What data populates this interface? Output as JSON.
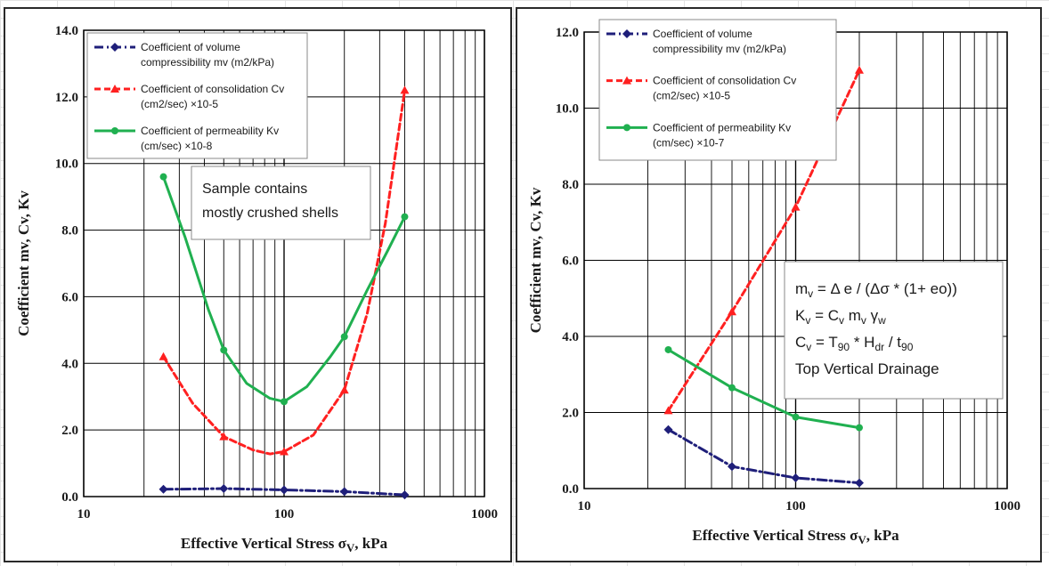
{
  "chart_data": [
    {
      "type": "line",
      "xscale": "log",
      "xlim": [
        10,
        1000
      ],
      "ylim": [
        0,
        14
      ],
      "y_ticks": [
        "0.0",
        "2.0",
        "4.0",
        "6.0",
        "8.0",
        "10.0",
        "12.0",
        "14.0"
      ],
      "x_ticks": [
        "10",
        "100",
        "1000"
      ],
      "xlabel": "Effective Vertical Stress σ",
      "xlabel_sub": "V",
      "xlabel_unit": ", kPa",
      "ylabel": "Coefficient   mv,  Cv,  Kv",
      "grid": true,
      "legend_position": "top-left",
      "annotation": [
        "Sample contains",
        "mostly crushed shells"
      ],
      "series": [
        {
          "name_lines": [
            "Coefficient of volume",
            "compressibility mv (m2/kPa)"
          ],
          "color": "#1f1f7a",
          "style": "dashdot",
          "marker": "diamond",
          "x": [
            25,
            50,
            100,
            200,
            400
          ],
          "y": [
            0.22,
            0.24,
            0.2,
            0.15,
            0.05
          ]
        },
        {
          "name_lines": [
            "Coefficient of consolidation Cv",
            "(cm2/sec) ×10-5"
          ],
          "color": "#ff2020",
          "style": "dashed",
          "marker": "triangle",
          "x": [
            25,
            50,
            100,
            200,
            400
          ],
          "y": [
            4.2,
            1.8,
            1.35,
            3.2,
            12.2
          ],
          "curve": [
            [
              25,
              4.2
            ],
            [
              35,
              2.8
            ],
            [
              50,
              1.8
            ],
            [
              70,
              1.4
            ],
            [
              85,
              1.28
            ],
            [
              100,
              1.35
            ],
            [
              140,
              1.85
            ],
            [
              200,
              3.2
            ],
            [
              260,
              5.5
            ],
            [
              320,
              8.2
            ],
            [
              400,
              12.2
            ]
          ]
        },
        {
          "name_lines": [
            "Coefficient of permeability Kv",
            "(cm/sec) ×10-8"
          ],
          "color": "#20b050",
          "style": "solid",
          "marker": "circle",
          "x": [
            25,
            50,
            100,
            200,
            400
          ],
          "y": [
            9.6,
            4.4,
            2.85,
            4.8,
            8.4
          ],
          "curve": [
            [
              25,
              9.6
            ],
            [
              32,
              7.8
            ],
            [
              42,
              5.6
            ],
            [
              50,
              4.4
            ],
            [
              65,
              3.4
            ],
            [
              85,
              2.95
            ],
            [
              100,
              2.85
            ],
            [
              130,
              3.3
            ],
            [
              170,
              4.2
            ],
            [
              200,
              4.8
            ],
            [
              260,
              6.2
            ],
            [
              330,
              7.4
            ],
            [
              400,
              8.4
            ]
          ]
        }
      ]
    },
    {
      "type": "line",
      "xscale": "log",
      "xlim": [
        10,
        1000
      ],
      "ylim": [
        0,
        12
      ],
      "y_ticks": [
        "0.0",
        "2.0",
        "4.0",
        "6.0",
        "8.0",
        "10.0",
        "12.0"
      ],
      "x_ticks": [
        "10",
        "100",
        "1000"
      ],
      "xlabel": "Effective Vertical Stress σ",
      "xlabel_sub": "V",
      "xlabel_unit": ", kPa",
      "ylabel": "Coefficient   mv,  Cv,  Kv",
      "grid": true,
      "legend_position": "top-left",
      "annotation_lines": [
        {
          "parts": [
            [
              "m",
              "n"
            ],
            [
              "v",
              "sub"
            ],
            [
              " = Δ e / (Δσ * (1+ eo))",
              "n"
            ]
          ]
        },
        {
          "parts": [
            [
              "K",
              "n"
            ],
            [
              "v",
              "sub"
            ],
            [
              " = C",
              "n"
            ],
            [
              "v",
              "sub"
            ],
            [
              " m",
              "n"
            ],
            [
              "v",
              "sub"
            ],
            [
              "  γ",
              "n"
            ],
            [
              "w",
              "sub"
            ]
          ]
        },
        {
          "parts": [
            [
              "C",
              "n"
            ],
            [
              "v",
              "sub"
            ],
            [
              " = T",
              "n"
            ],
            [
              "90",
              "sub"
            ],
            [
              " * H",
              "n"
            ],
            [
              "dr",
              "sub"
            ],
            [
              " / t",
              "n"
            ],
            [
              "90",
              "sub"
            ]
          ]
        },
        {
          "parts": [
            [
              "Top Vertical Drainage",
              "n"
            ]
          ]
        }
      ],
      "series": [
        {
          "name_lines": [
            "Coefficient of volume",
            "compressibility mv (m2/kPa)"
          ],
          "color": "#1f1f7a",
          "style": "dashdot",
          "marker": "diamond",
          "x": [
            25,
            50,
            100,
            200
          ],
          "y": [
            1.55,
            0.58,
            0.28,
            0.15
          ]
        },
        {
          "name_lines": [
            "Coefficient of consolidation Cv",
            "(cm2/sec) ×10-5"
          ],
          "color": "#ff2020",
          "style": "dashed",
          "marker": "triangle",
          "x": [
            25,
            50,
            100,
            200
          ],
          "y": [
            2.05,
            4.65,
            7.4,
            11.0
          ]
        },
        {
          "name_lines": [
            "Coefficient of permeability Kv",
            "(cm/sec) ×10-7"
          ],
          "color": "#20b050",
          "style": "solid",
          "marker": "circle",
          "x": [
            25,
            50,
            100,
            200
          ],
          "y": [
            3.65,
            2.65,
            1.88,
            1.6
          ]
        }
      ]
    }
  ]
}
